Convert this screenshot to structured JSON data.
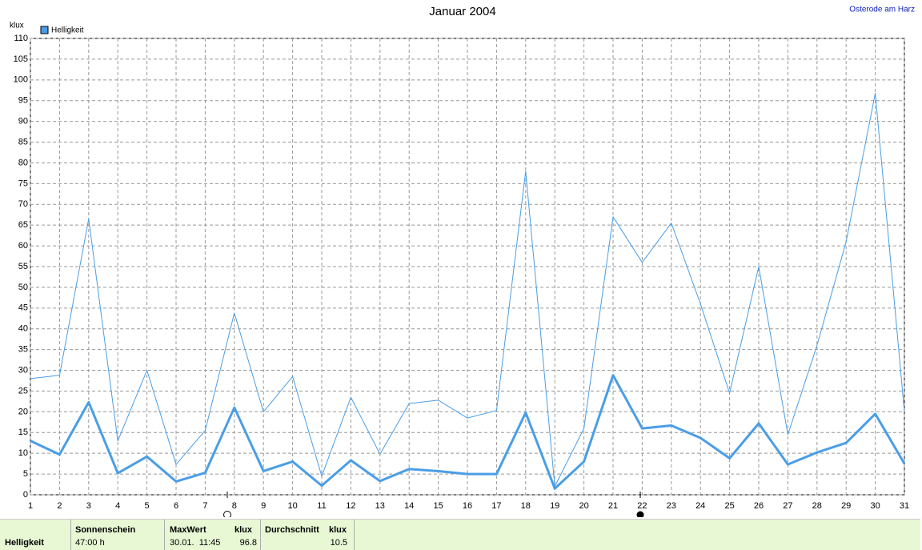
{
  "chart_data": {
    "type": "line",
    "title": "Januar 2004",
    "location": "Osterode am Harz",
    "y_label": "klux",
    "x": [
      1,
      2,
      3,
      4,
      5,
      6,
      7,
      8,
      9,
      10,
      11,
      12,
      13,
      14,
      15,
      16,
      17,
      18,
      19,
      20,
      21,
      22,
      23,
      24,
      25,
      26,
      27,
      28,
      29,
      30,
      31
    ],
    "series": [
      {
        "color": "#4a9ee6",
        "width": 1,
        "values": [
          28,
          28.8,
          66.5,
          13,
          30,
          7.3,
          15.5,
          43.8,
          20,
          28.5,
          4.5,
          23.5,
          9.8,
          22,
          22.8,
          18.5,
          20.3,
          78,
          2,
          16,
          67,
          56,
          65.5,
          46,
          24.5,
          55,
          14.5,
          36,
          61,
          96.8,
          20
        ]
      },
      {
        "name": "Helligkeit",
        "color": "#4a9ee6",
        "width": 3,
        "values": [
          13,
          9.7,
          22.3,
          5.2,
          9.2,
          3.2,
          5.3,
          21,
          5.7,
          8,
          2.2,
          8.3,
          3.3,
          6.2,
          5.7,
          5,
          5,
          19.8,
          1.5,
          8,
          28.8,
          16,
          16.7,
          13.7,
          8.8,
          17.2,
          7.3,
          10.2,
          12.5,
          19.5,
          7.5
        ]
      }
    ],
    "xlim": [
      1,
      31
    ],
    "xticks": [
      1,
      2,
      3,
      4,
      5,
      6,
      7,
      8,
      9,
      10,
      11,
      12,
      13,
      14,
      15,
      16,
      17,
      18,
      19,
      20,
      21,
      22,
      23,
      24,
      25,
      26,
      27,
      28,
      29,
      30,
      31
    ],
    "ylim": [
      0,
      110
    ],
    "yticks": [
      0,
      5,
      10,
      15,
      20,
      25,
      30,
      35,
      40,
      45,
      50,
      55,
      60,
      65,
      70,
      75,
      80,
      85,
      90,
      95,
      100,
      105,
      110
    ],
    "grid": true
  },
  "summary": {
    "row": "Helligkeit",
    "sunshine": {
      "label": "Sonnenschein",
      "value": "47:00 h"
    },
    "max": {
      "label": "MaxWert",
      "unit": "klux",
      "time": "30.01.  11:45",
      "value": "96.8"
    },
    "average": {
      "label": "Durchschnitt",
      "unit": "klux",
      "value": "10.5"
    }
  }
}
